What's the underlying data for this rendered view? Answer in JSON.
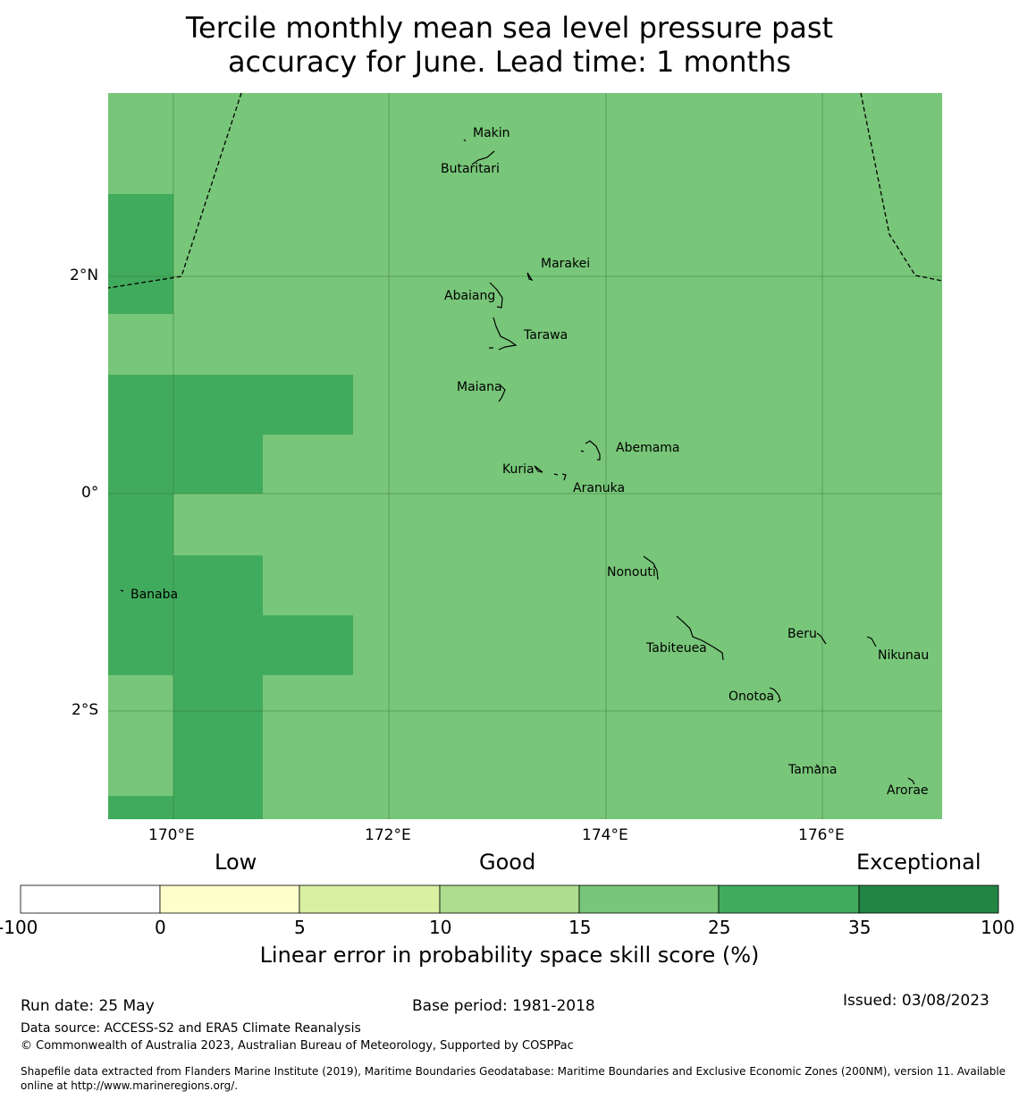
{
  "title_line1": "Tercile monthly mean sea level pressure past",
  "title_line2": "accuracy for June. Lead time: 1 months",
  "map": {
    "lat_labels": [
      "2°N",
      "0°",
      "2°S"
    ],
    "lon_labels": [
      "170°E",
      "172°E",
      "174°E",
      "176°E"
    ],
    "base_color": "#78c679",
    "high_color": "#41ab5d",
    "places": [
      "Makin",
      "Butaritari",
      "Marakei",
      "Abaiang",
      "Tarawa",
      "Maiana",
      "Abemama",
      "Kuria",
      "Aranuka",
      "Banaba",
      "Nonouti",
      "Beru",
      "Tabiteuea",
      "Nikunau",
      "Onotoa",
      "Tamana",
      "Arorae"
    ]
  },
  "colorbar": {
    "category_labels": [
      "Low",
      "Good",
      "Exceptional"
    ],
    "ticks": [
      "-100",
      "0",
      "5",
      "10",
      "15",
      "25",
      "35",
      "100"
    ],
    "colors": [
      "#ffffff",
      "#ffffcc",
      "#d9f0a3",
      "#addd8e",
      "#78c679",
      "#41ab5d",
      "#238443"
    ],
    "label": "Linear error in probability space skill score (%)"
  },
  "footer": {
    "run_date": "Run date: 25 May",
    "base_period": "Base period: 1981-2018",
    "issued": "Issued: 03/08/2023",
    "data_source": "Data source: ACCESS-S2 and ERA5 Climate Reanalysis",
    "copyright": "© Commonwealth of Australia 2023, Australian Bureau of Meteorology, Supported by COSPPac",
    "shapefile1": "Shapefile data extracted from Flanders Marine Institute (2019), Maritime Boundaries Geodatabase: Maritime Boundaries and Exclusive Economic Zones (200NM), version 11. Available",
    "shapefile2": "online at http://www.marineregions.org/."
  }
}
